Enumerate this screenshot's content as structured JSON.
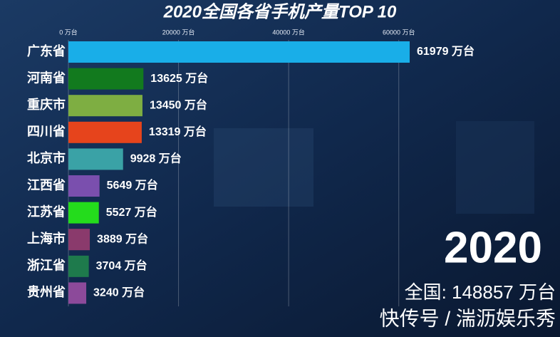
{
  "chart_data": {
    "type": "bar",
    "orientation": "horizontal",
    "title": "2020全国各省手机产量TOP 10",
    "categories": [
      "广东省",
      "河南省",
      "重庆市",
      "四川省",
      "北京市",
      "江西省",
      "江苏省",
      "上海市",
      "浙江省",
      "贵州省"
    ],
    "values": [
      61979,
      13625,
      13450,
      13319,
      9928,
      5649,
      5527,
      3889,
      3704,
      3240
    ],
    "value_labels": [
      "61979 万台",
      "13625 万台",
      "13450 万台",
      "13319 万台",
      "9928 万台",
      "5649 万台",
      "5527 万台",
      "3889 万台",
      "3704 万台",
      "3240 万台"
    ],
    "colors": [
      "#19aee8",
      "#127a1e",
      "#7eae42",
      "#e6441c",
      "#3aa2a6",
      "#7a4fae",
      "#24dc1c",
      "#8a3a6c",
      "#1e7a4c",
      "#8c4a9a"
    ],
    "xlim": [
      0,
      70000
    ],
    "xticks": [
      {
        "value": 0,
        "label": "0 万台"
      },
      {
        "value": 20000,
        "label": "20000 万台"
      },
      {
        "value": 40000,
        "label": "40000 万台"
      },
      {
        "value": 60000,
        "label": "60000 万台"
      }
    ],
    "grid": true,
    "year": "2020",
    "total": "全国: 148857 万台",
    "watermark": "快传号 / 湍沥娱乐秀"
  }
}
